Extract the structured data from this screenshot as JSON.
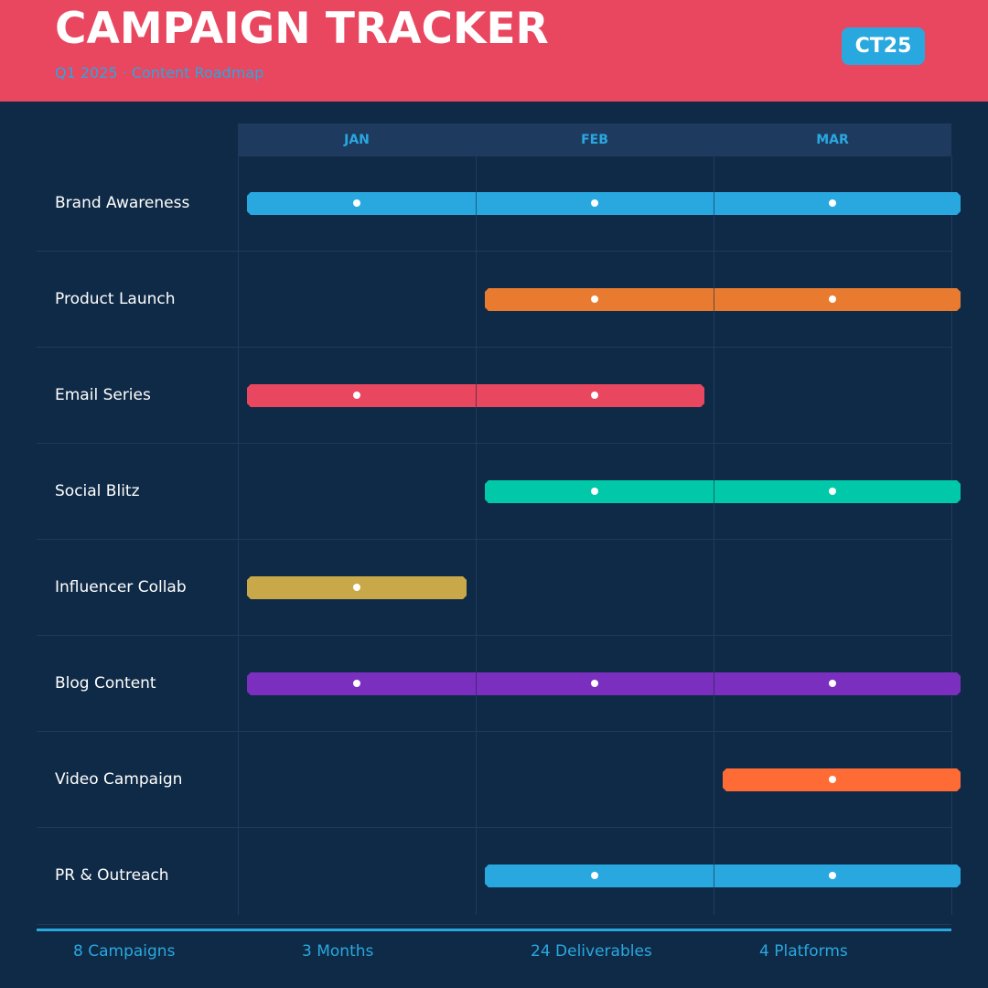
{
  "header": {
    "title": "CAMPAIGN TRACKER",
    "subtitle": "Q1 2025 · Content Roadmap",
    "badge": "CT25"
  },
  "months": [
    "JAN",
    "FEB",
    "MAR"
  ],
  "campaigns": [
    {
      "name": "Brand Awareness",
      "start": 0,
      "end": 2,
      "color": "#29a8e0"
    },
    {
      "name": "Product Launch",
      "start": 1,
      "end": 2,
      "color": "#e87b30"
    },
    {
      "name": "Email Series",
      "start": 0,
      "end": 1,
      "color": "#e9465f"
    },
    {
      "name": "Social Blitz",
      "start": 1,
      "end": 2,
      "color": "#00c8a8"
    },
    {
      "name": "Influencer Collab",
      "start": 0,
      "end": 0,
      "color": "#c9a84a"
    },
    {
      "name": "Blog Content",
      "start": 0,
      "end": 2,
      "color": "#7b2fbe"
    },
    {
      "name": "Video Campaign",
      "start": 2,
      "end": 2,
      "color": "#ff6b35"
    },
    {
      "name": "PR & Outreach",
      "start": 1,
      "end": 2,
      "color": "#29a8e0"
    }
  ],
  "stats": [
    "8 Campaigns",
    "3 Months",
    "24 Deliverables",
    "4 Platforms"
  ]
}
